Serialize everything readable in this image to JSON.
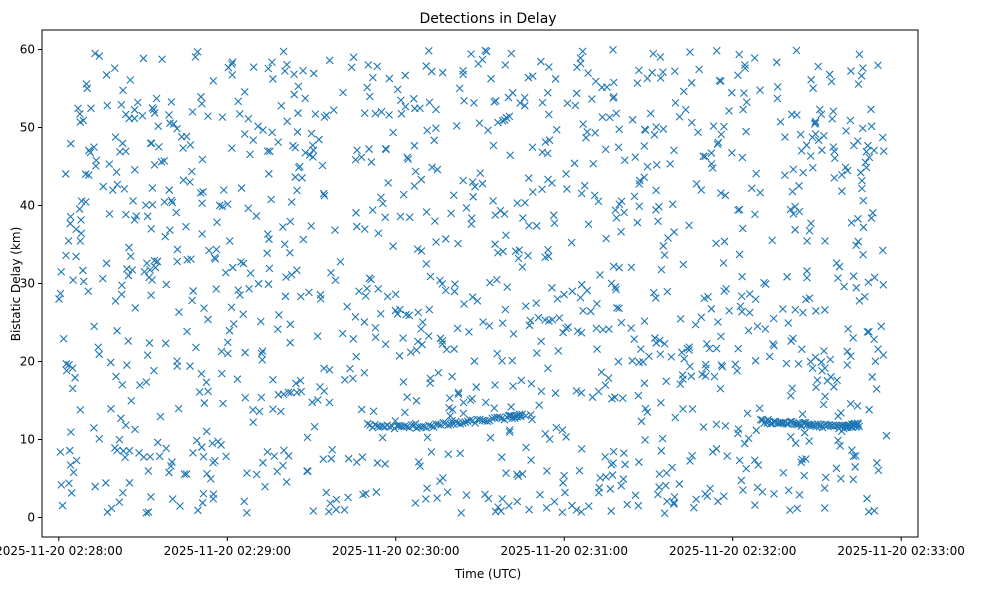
{
  "chart_data": {
    "type": "scatter",
    "title": "Detections in Delay",
    "xlabel": "Time (UTC)",
    "ylabel": "Bistatic Delay (km)",
    "x_is_time": true,
    "x_range": [
      "2025-11-20 02:27:54",
      "2025-11-20 02:33:06"
    ],
    "x_data_range": [
      "2025-11-20 02:28:00",
      "2025-11-20 02:32:55"
    ],
    "x_ticks": [
      "2025-11-20 02:28:00",
      "2025-11-20 02:29:00",
      "2025-11-20 02:30:00",
      "2025-11-20 02:31:00",
      "2025-11-20 02:32:00",
      "2025-11-20 02:33:00"
    ],
    "ylim": [
      -2.5,
      62.5
    ],
    "y_ticks": [
      0,
      10,
      20,
      30,
      40,
      50,
      60
    ],
    "y_data_range": [
      0.5,
      60
    ],
    "marker": "x",
    "color": "#1f77b4",
    "grid": false,
    "approx_point_count": 1400,
    "tracks": [
      {
        "description_x": [
          "2025-11-20 02:29:50",
          "2025-11-20 02:30:45"
        ],
        "points": [
          [
            "2025-11-20 02:29:50",
            11.8
          ],
          [
            "2025-11-20 02:30:00",
            11.6
          ],
          [
            "2025-11-20 02:30:10",
            11.7
          ],
          [
            "2025-11-20 02:30:20",
            12.0
          ],
          [
            "2025-11-20 02:30:30",
            12.4
          ],
          [
            "2025-11-20 02:30:40",
            12.8
          ],
          [
            "2025-11-20 02:30:45",
            13.1
          ]
        ]
      },
      {
        "points": [
          [
            "2025-11-20 02:32:10",
            12.3
          ],
          [
            "2025-11-20 02:32:20",
            12.1
          ],
          [
            "2025-11-20 02:32:30",
            11.8
          ],
          [
            "2025-11-20 02:32:40",
            11.6
          ],
          [
            "2025-11-20 02:32:45",
            11.9
          ]
        ]
      }
    ]
  }
}
